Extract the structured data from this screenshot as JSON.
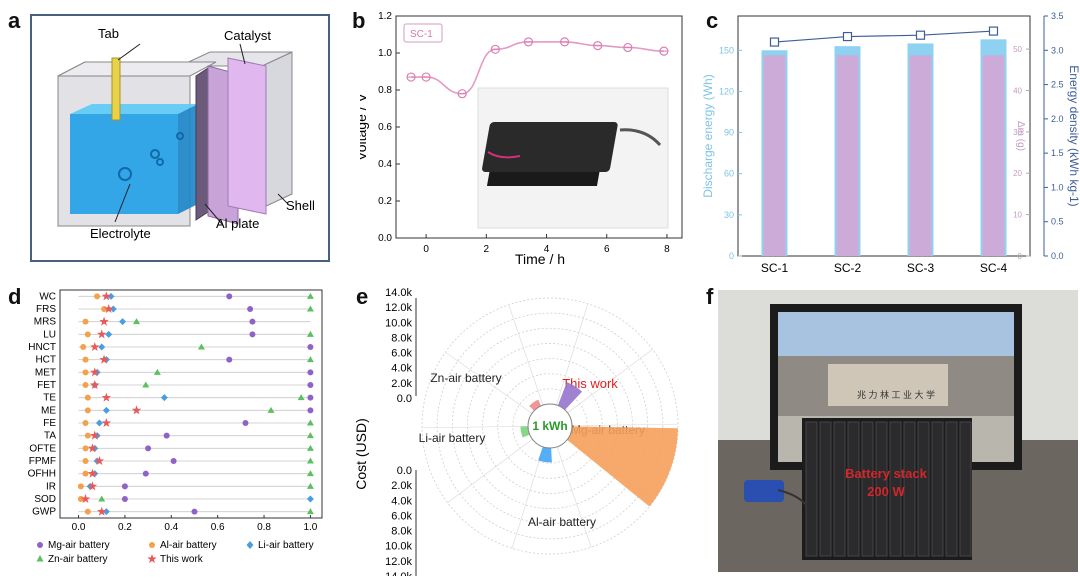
{
  "panel_labels": {
    "a": "a",
    "b": "b",
    "c": "c",
    "d": "d",
    "e": "e",
    "f": "f"
  },
  "panel_a": {
    "labels": {
      "tab": "Tab",
      "catalyst": "Catalyst",
      "electrolyte": "Electrolyte",
      "al_plate": "Al plate",
      "shell": "Shell"
    }
  },
  "panel_f": {
    "stack_label_line1": "Battery stack",
    "stack_label_line2": "200 W",
    "screen_text": "兆 力 林 工 业 大 学"
  },
  "chart_data": [
    {
      "id": "b",
      "type": "line",
      "title": "",
      "legend": "SC-1",
      "xlabel": "Time / h",
      "ylabel": "Voltage / V",
      "xlim": [
        -1,
        8.5
      ],
      "ylim": [
        0,
        1.2
      ],
      "xticks": [
        0,
        2,
        4,
        6,
        8
      ],
      "yticks": [
        0.0,
        0.2,
        0.4,
        0.6,
        0.8,
        1.0,
        1.2
      ],
      "x": [
        -0.5,
        0,
        1.2,
        2.3,
        3.4,
        4.6,
        5.7,
        6.7,
        7.9
      ],
      "y": [
        0.87,
        0.87,
        0.78,
        1.02,
        1.06,
        1.06,
        1.04,
        1.03,
        1.01
      ]
    },
    {
      "id": "c",
      "type": "bar",
      "categories": [
        "SC-1",
        "SC-2",
        "SC-3",
        "SC-4"
      ],
      "series": [
        {
          "name": "Discharge energy (Wh)",
          "axis": "left",
          "values": [
            150,
            153,
            155,
            158
          ]
        },
        {
          "name": "Δm (g)",
          "axis": "middle",
          "values": [
            48.5,
            48.5,
            48.5,
            48.5
          ]
        },
        {
          "name": "Energy density (kWh kg-1)",
          "axis": "right",
          "type": "line",
          "values": [
            3.12,
            3.2,
            3.22,
            3.28
          ]
        }
      ],
      "ylabel_left": "Discharge energy (Wh)",
      "ylabel_middle": "Δm (g)",
      "ylabel_right": "Energy density (kWh kg-1)",
      "ylim_left": [
        0,
        175
      ],
      "ylim_middle": [
        0,
        58
      ],
      "ylim_right": [
        0,
        3.5
      ],
      "yticks_left": [
        0,
        30,
        60,
        90,
        120,
        150
      ],
      "yticks_middle": [
        0,
        10,
        20,
        30,
        40,
        50
      ],
      "yticks_right": [
        0.0,
        0.5,
        1.0,
        1.5,
        2.0,
        2.5,
        3.0,
        3.5
      ]
    },
    {
      "id": "d",
      "type": "scatter",
      "categories": [
        "WC",
        "FRS",
        "MRS",
        "LU",
        "HNCT",
        "HCT",
        "MET",
        "FET",
        "TE",
        "ME",
        "FE",
        "TA",
        "OFTE",
        "FPMF",
        "OFHH",
        "IR",
        "SOD",
        "GWP"
      ],
      "xlim": [
        -0.08,
        1.05
      ],
      "xticks": [
        0.0,
        0.2,
        0.4,
        0.6,
        0.8,
        1.0
      ],
      "series": [
        {
          "name": "Mg-air battery",
          "values": [
            0.65,
            0.74,
            0.75,
            0.75,
            1.0,
            0.65,
            1.0,
            1.0,
            1.0,
            1.0,
            0.72,
            0.38,
            0.3,
            0.41,
            0.29,
            0.2,
            0.2,
            0.5
          ]
        },
        {
          "name": "Al-air battery",
          "values": [
            0.08,
            0.11,
            0.03,
            0.04,
            0.02,
            0.03,
            0.03,
            0.03,
            0.04,
            0.04,
            0.03,
            0.04,
            0.03,
            0.03,
            0.03,
            0.01,
            0.01,
            0.04
          ]
        },
        {
          "name": "Li-air battery",
          "values": [
            0.14,
            0.15,
            0.19,
            0.13,
            0.1,
            0.12,
            0.08,
            0.07,
            0.37,
            0.12,
            0.09,
            0.08,
            0.07,
            0.08,
            0.07,
            0.05,
            1.0,
            0.12
          ]
        },
        {
          "name": "Zn-air battery",
          "values": [
            1.0,
            1.0,
            0.25,
            1.0,
            0.53,
            1.0,
            0.34,
            0.29,
            0.96,
            0.83,
            1.0,
            1.0,
            1.0,
            1.0,
            1.0,
            1.0,
            0.1,
            1.0
          ]
        },
        {
          "name": "This work",
          "values": [
            0.12,
            0.13,
            0.11,
            0.1,
            0.07,
            0.11,
            0.07,
            0.07,
            0.12,
            0.25,
            0.12,
            0.07,
            0.06,
            0.09,
            0.06,
            0.06,
            0.03,
            0.1
          ]
        }
      ]
    },
    {
      "id": "e",
      "type": "pie",
      "title": "",
      "ylabel": "Cost (USD)",
      "center_label": "1 kWh",
      "max": 14000,
      "ticks_top": [
        "14.0k",
        "12.0k",
        "10.0k",
        "8.0k",
        "6.0k",
        "4.0k",
        "2.0k",
        "0.0"
      ],
      "ticks_bottom": [
        "0.0",
        "2.0k",
        "4.0k",
        "6.0k",
        "8.0k",
        "10.0k",
        "12.0k",
        "14.0k"
      ],
      "slices": [
        {
          "name": "This work",
          "value": 900,
          "color": "#f08a8a"
        },
        {
          "name": "Mg-air battery",
          "value": 3300,
          "color": "#9575cd"
        },
        {
          "name": "Al-air battery",
          "value": 14000,
          "color": "#f5a05a"
        },
        {
          "name": "Li-air battery",
          "value": 1900,
          "color": "#42a5f5"
        },
        {
          "name": "Zn-air battery",
          "value": 1000,
          "color": "#7bd17b"
        }
      ]
    }
  ]
}
